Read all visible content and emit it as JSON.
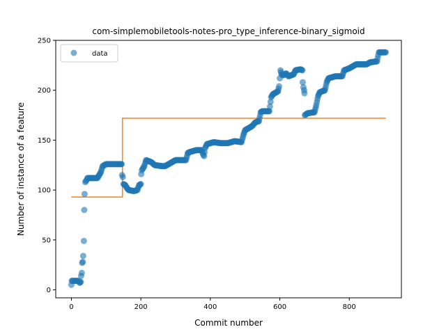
{
  "chart_data": {
    "type": "scatter",
    "title": "com-simplemobiletools-notes-pro_type_inference-binary_sigmoid",
    "xlabel": "Commit number",
    "ylabel": "Number of instance of a feature",
    "xlim": [
      -45,
      950
    ],
    "ylim": [
      -8,
      250
    ],
    "xticks": [
      0,
      200,
      400,
      600,
      800
    ],
    "yticks": [
      0,
      50,
      100,
      150,
      200,
      250
    ],
    "grid": false,
    "legend": {
      "placement": "top-left",
      "entries": [
        "data"
      ]
    },
    "colors": {
      "data": "#1f77b4",
      "fit": "#ff7f0e"
    },
    "series": [
      {
        "name": "data",
        "kind": "scatter",
        "anchors": [
          [
            0,
            5
          ],
          [
            1,
            9
          ],
          [
            10,
            9
          ],
          [
            20,
            9
          ],
          [
            24,
            7
          ],
          [
            27,
            8
          ],
          [
            28,
            14
          ],
          [
            30,
            17
          ],
          [
            31,
            27
          ],
          [
            33,
            28
          ],
          [
            34,
            34
          ],
          [
            36,
            49
          ],
          [
            37,
            80
          ],
          [
            38,
            96
          ],
          [
            40,
            108
          ],
          [
            44,
            110
          ],
          [
            46,
            112
          ],
          [
            60,
            112
          ],
          [
            65,
            112
          ],
          [
            75,
            112
          ],
          [
            80,
            115
          ],
          [
            85,
            118
          ],
          [
            90,
            124
          ],
          [
            100,
            126
          ],
          [
            145,
            126
          ],
          [
            146,
            115
          ],
          [
            148,
            113
          ],
          [
            150,
            106
          ],
          [
            155,
            105
          ],
          [
            160,
            102
          ],
          [
            165,
            100
          ],
          [
            180,
            99
          ],
          [
            190,
            100
          ],
          [
            195,
            105
          ],
          [
            200,
            106
          ],
          [
            201,
            116
          ],
          [
            203,
            120
          ],
          [
            210,
            124
          ],
          [
            215,
            130
          ],
          [
            230,
            128
          ],
          [
            240,
            125
          ],
          [
            260,
            124
          ],
          [
            270,
            124
          ],
          [
            280,
            126
          ],
          [
            290,
            128
          ],
          [
            300,
            130
          ],
          [
            330,
            130
          ],
          [
            335,
            137
          ],
          [
            340,
            138
          ],
          [
            360,
            140
          ],
          [
            375,
            140
          ],
          [
            380,
            135
          ],
          [
            382,
            134
          ],
          [
            385,
            142
          ],
          [
            390,
            146
          ],
          [
            400,
            147
          ],
          [
            410,
            148
          ],
          [
            430,
            147
          ],
          [
            450,
            147
          ],
          [
            470,
            149
          ],
          [
            490,
            148
          ],
          [
            495,
            155
          ],
          [
            500,
            160
          ],
          [
            510,
            162
          ],
          [
            520,
            164
          ],
          [
            530,
            168
          ],
          [
            540,
            169
          ],
          [
            545,
            178
          ],
          [
            550,
            179
          ],
          [
            570,
            179
          ],
          [
            575,
            193
          ],
          [
            580,
            196
          ],
          [
            595,
            199
          ],
          [
            598,
            204
          ],
          [
            600,
            212
          ],
          [
            602,
            220
          ],
          [
            605,
            216
          ],
          [
            610,
            215
          ],
          [
            618,
            217
          ],
          [
            625,
            214
          ],
          [
            640,
            216
          ],
          [
            645,
            220
          ],
          [
            660,
            221
          ],
          [
            665,
            220
          ],
          [
            666,
            208
          ],
          [
            668,
            203
          ],
          [
            670,
            200
          ],
          [
            671,
            197
          ],
          [
            672,
            175
          ],
          [
            680,
            177
          ],
          [
            700,
            178
          ],
          [
            705,
            185
          ],
          [
            710,
            194
          ],
          [
            715,
            198
          ],
          [
            730,
            200
          ],
          [
            735,
            208
          ],
          [
            740,
            212
          ],
          [
            760,
            214
          ],
          [
            780,
            214
          ],
          [
            785,
            220
          ],
          [
            800,
            222
          ],
          [
            820,
            226
          ],
          [
            850,
            226
          ],
          [
            860,
            228
          ],
          [
            880,
            229
          ],
          [
            885,
            238
          ],
          [
            905,
            238
          ]
        ]
      },
      {
        "name": "",
        "kind": "step-line",
        "segments": [
          {
            "x0": 0,
            "x1": 147,
            "y": 93
          },
          {
            "x0": 147,
            "x1": 905,
            "y": 172
          }
        ]
      }
    ]
  }
}
